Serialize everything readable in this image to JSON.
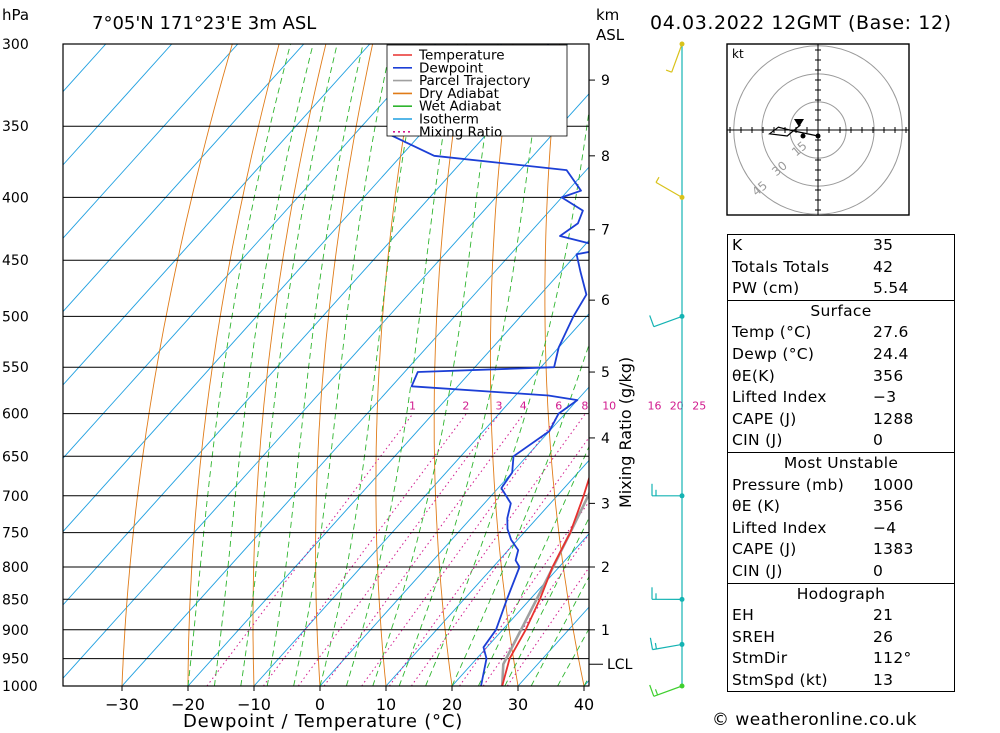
{
  "header": {
    "hpa_unit": "hPa",
    "location": "7°05'N  171°23'E  3m  ASL",
    "km_unit": "km",
    "asl": "ASL",
    "datetime": "04.03.2022  12GMT  (Base: 12)"
  },
  "legend": [
    "Temperature",
    "Dewpoint",
    "Parcel Trajectory",
    "Dry Adiabat",
    "Wet Adiabat",
    "Isotherm",
    "Mixing Ratio"
  ],
  "colors": {
    "temperature": "#e8312f",
    "dewpoint": "#1c3fd6",
    "parcel": "#a0a0a0",
    "dry_adiabat": "#e07b18",
    "wet_adiabat": "#2fb52f",
    "isotherm": "#1e9fe0",
    "mixing_ratio": "#d11a8e",
    "wind_yellow": "#d9c21a",
    "wind_cyan": "#14b3b3",
    "wind_green": "#3fcf2f"
  },
  "chart_data": {
    "type": "line",
    "title": "",
    "xlabel": "Dewpoint / Temperature (°C)",
    "ylabel": "hPa",
    "right_label": "Mixing Ratio (g/kg)",
    "xlim": [
      -40,
      40
    ],
    "ylim": [
      1000,
      300
    ],
    "x_ticks": [
      -30,
      -20,
      -10,
      0,
      10,
      20,
      30,
      40
    ],
    "pressure_levels": [
      300,
      350,
      400,
      450,
      500,
      550,
      600,
      650,
      700,
      750,
      800,
      850,
      900,
      950,
      1000
    ],
    "height_km_ticks": [
      {
        "km": 1,
        "p": 900
      },
      {
        "km": 2,
        "p": 800
      },
      {
        "km": 3,
        "p": 710
      },
      {
        "km": 4,
        "p": 628
      },
      {
        "km": 5,
        "p": 555
      },
      {
        "km": 6,
        "p": 485
      },
      {
        "km": 7,
        "p": 425
      },
      {
        "km": 8,
        "p": 370
      },
      {
        "km": 9,
        "p": 321
      }
    ],
    "lcl_label": "LCL",
    "lcl_pressure": 960,
    "mixing_ratio_labels": [
      "1",
      "2",
      "3",
      "4",
      "6",
      "8",
      "10",
      "16",
      "20",
      "25"
    ],
    "mixing_ratio_values": [
      1,
      2,
      3,
      4,
      6,
      8,
      10,
      16,
      20,
      25
    ],
    "series": [
      {
        "name": "Temperature",
        "points": [
          [
            1000,
            27.6
          ],
          [
            950,
            25.0
          ],
          [
            900,
            23.5
          ],
          [
            850,
            21.5
          ],
          [
            800,
            19.0
          ],
          [
            750,
            17.0
          ],
          [
            700,
            14.0
          ],
          [
            650,
            10.5
          ],
          [
            600,
            7.0
          ],
          [
            550,
            3.5
          ],
          [
            500,
            -1.0
          ],
          [
            450,
            -6.5
          ],
          [
            400,
            -11.5
          ],
          [
            380,
            -15.0
          ],
          [
            350,
            -20.0
          ]
        ]
      },
      {
        "name": "Dewpoint",
        "points": [
          [
            1000,
            24.4
          ],
          [
            950,
            21.5
          ],
          [
            930,
            19.5
          ],
          [
            900,
            19.0
          ],
          [
            850,
            16.5
          ],
          [
            800,
            14.0
          ],
          [
            790,
            12.5
          ],
          [
            775,
            11.5
          ],
          [
            760,
            9.0
          ],
          [
            745,
            7.0
          ],
          [
            730,
            5.5
          ],
          [
            710,
            4.0
          ],
          [
            690,
            0.5
          ],
          [
            670,
            0.0
          ],
          [
            650,
            -2.0
          ],
          [
            620,
            0.0
          ],
          [
            600,
            -1.0
          ],
          [
            585,
            0.0
          ],
          [
            580,
            -5.0
          ],
          [
            570,
            -27.0
          ],
          [
            555,
            -28.0
          ],
          [
            550,
            -8.0
          ],
          [
            530,
            -10.0
          ],
          [
            500,
            -12.0
          ],
          [
            480,
            -13.0
          ],
          [
            460,
            -17.0
          ],
          [
            445,
            -20.0
          ],
          [
            440,
            -16.0
          ],
          [
            430,
            -25.0
          ],
          [
            420,
            -24.0
          ],
          [
            410,
            -25.0
          ],
          [
            400,
            -30.0
          ],
          [
            395,
            -28.0
          ],
          [
            380,
            -33.0
          ],
          [
            370,
            -55.0
          ],
          [
            355,
            -65.0
          ],
          [
            340,
            -56.0
          ],
          [
            320,
            -48.0
          ],
          [
            300,
            -53.0
          ]
        ]
      },
      {
        "name": "Parcel Trajectory",
        "points": [
          [
            1000,
            27.6
          ],
          [
            960,
            24.8
          ],
          [
            900,
            22.8
          ],
          [
            850,
            21.0
          ],
          [
            800,
            19.1
          ],
          [
            750,
            17.0
          ],
          [
            700,
            14.7
          ],
          [
            650,
            12.0
          ],
          [
            600,
            9.0
          ],
          [
            550,
            5.4
          ],
          [
            500,
            1.3
          ],
          [
            450,
            -3.6
          ],
          [
            400,
            -9.6
          ],
          [
            370,
            -13.8
          ],
          [
            350,
            -17.0
          ]
        ]
      }
    ],
    "wind_barbs": [
      {
        "p": 1000,
        "color": "wind_green",
        "dir": 250,
        "kt": 15
      },
      {
        "p": 925,
        "color": "wind_cyan",
        "dir": 260,
        "kt": 15
      },
      {
        "p": 850,
        "color": "wind_cyan",
        "dir": 270,
        "kt": 15
      },
      {
        "p": 700,
        "color": "wind_cyan",
        "dir": 270,
        "kt": 15
      },
      {
        "p": 500,
        "color": "wind_cyan",
        "dir": 250,
        "kt": 10
      },
      {
        "p": 400,
        "color": "wind_yellow",
        "dir": 300,
        "kt": 5
      },
      {
        "p": 300,
        "color": "wind_yellow",
        "dir": 200,
        "kt": 5
      }
    ],
    "hodograph": {
      "unit_label": "kt",
      "ring_labels": [
        "15",
        "30",
        "45"
      ],
      "points_kt": [
        [
          0,
          0
        ],
        [
          -12,
          5
        ],
        [
          -18,
          8
        ],
        [
          -22,
          2
        ],
        [
          -14,
          0
        ],
        [
          -8,
          10
        ]
      ]
    }
  },
  "indices": {
    "general": [
      {
        "label": "K",
        "value": "35"
      },
      {
        "label": "Totals Totals",
        "value": "42"
      },
      {
        "label": "PW (cm)",
        "value": "5.54"
      }
    ],
    "surface": {
      "title": "Surface",
      "rows": [
        {
          "label": "Temp (°C)",
          "value": "27.6"
        },
        {
          "label": "Dewp (°C)",
          "value": "24.4"
        },
        {
          "label": "θE(K)",
          "value": "356"
        },
        {
          "label": "Lifted Index",
          "value": "-3"
        },
        {
          "label": "CAPE (J)",
          "value": "1288"
        },
        {
          "label": "CIN (J)",
          "value": "0"
        }
      ]
    },
    "most_unstable": {
      "title": "Most Unstable",
      "rows": [
        {
          "label": "Pressure (mb)",
          "value": "1000"
        },
        {
          "label": "θE (K)",
          "value": "356"
        },
        {
          "label": "Lifted Index",
          "value": "-4"
        },
        {
          "label": "CAPE (J)",
          "value": "1383"
        },
        {
          "label": "CIN (J)",
          "value": "0"
        }
      ]
    },
    "hodograph": {
      "title": "Hodograph",
      "rows": [
        {
          "label": "EH",
          "value": "21"
        },
        {
          "label": "SREH",
          "value": "26"
        },
        {
          "label": "StmDir",
          "value": "112°"
        },
        {
          "label": "StmSpd (kt)",
          "value": "13"
        }
      ]
    }
  },
  "credit": "© weatheronline.co.uk"
}
